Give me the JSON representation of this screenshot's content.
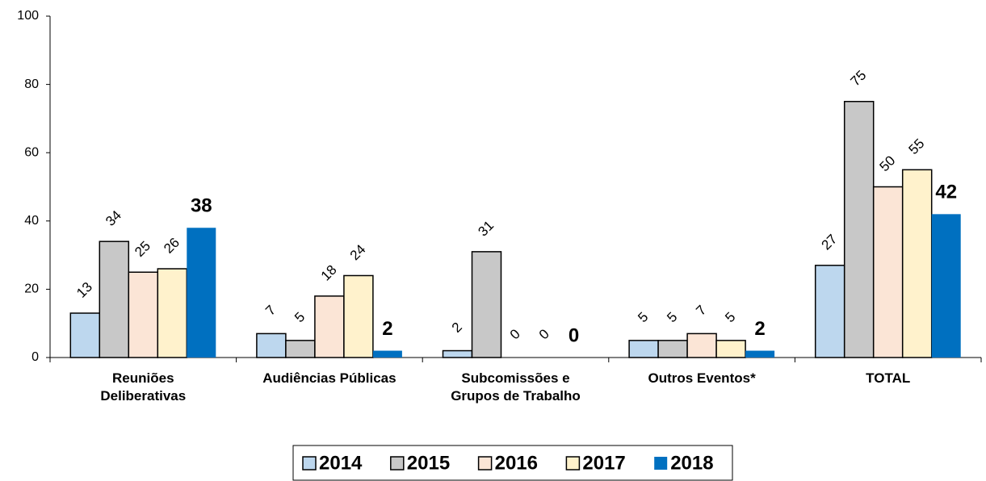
{
  "chart_data": {
    "type": "bar",
    "categories": [
      "Reuniões\nDeliberativas",
      "Audiências Públicas",
      "Subcomissões e\nGrupos de Trabalho",
      "Outros Eventos*",
      "TOTAL"
    ],
    "series": [
      {
        "name": "2014",
        "color": "#bdd7ee",
        "values": [
          13,
          7,
          2,
          5,
          27
        ]
      },
      {
        "name": "2015",
        "color": "#c8c8c8",
        "values": [
          34,
          5,
          31,
          5,
          75
        ]
      },
      {
        "name": "2016",
        "color": "#fbe5d6",
        "values": [
          25,
          18,
          0,
          7,
          50
        ]
      },
      {
        "name": "2017",
        "color": "#fff2cc",
        "values": [
          26,
          24,
          0,
          5,
          55
        ]
      },
      {
        "name": "2018",
        "color": "#0070c0",
        "values": [
          38,
          2,
          0,
          2,
          42
        ],
        "highlight": true
      }
    ],
    "ylim": [
      0,
      100
    ],
    "yticks": [
      0,
      20,
      40,
      60,
      80,
      100
    ],
    "grid": false,
    "legend": "bottom"
  }
}
